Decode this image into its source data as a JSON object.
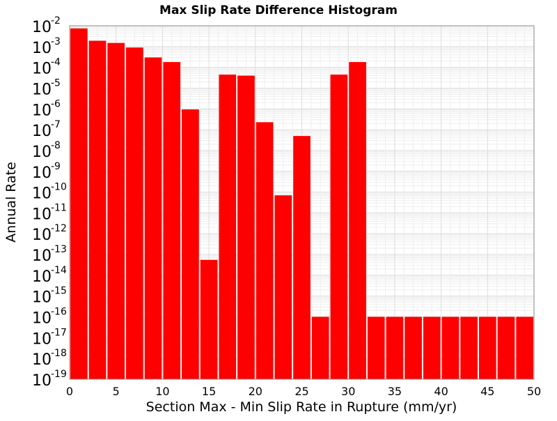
{
  "chart_data": {
    "type": "bar",
    "title": "Max Slip Rate Difference Histogram",
    "xlabel": "Section Max - Min Slip Rate in Rupture (mm/yr)",
    "ylabel": "Annual Rate",
    "xlim": [
      0,
      50
    ],
    "ylim_exponent": [
      -19,
      -2
    ],
    "y_scale": "log",
    "grid": true,
    "bar_color": "#ff0000",
    "bar_width": 2,
    "x_ticks": [
      "0",
      "5",
      "10",
      "15",
      "20",
      "25",
      "30",
      "35",
      "40",
      "45",
      "50"
    ],
    "y_ticks": [
      {
        "base": "10",
        "exp": "-2"
      },
      {
        "base": "10",
        "exp": "-3"
      },
      {
        "base": "10",
        "exp": "-4"
      },
      {
        "base": "10",
        "exp": "-5"
      },
      {
        "base": "10",
        "exp": "-6"
      },
      {
        "base": "10",
        "exp": "-7"
      },
      {
        "base": "10",
        "exp": "-8"
      },
      {
        "base": "10",
        "exp": "-9"
      },
      {
        "base": "10",
        "exp": "-10"
      },
      {
        "base": "10",
        "exp": "-11"
      },
      {
        "base": "10",
        "exp": "-12"
      },
      {
        "base": "10",
        "exp": "-13"
      },
      {
        "base": "10",
        "exp": "-14"
      },
      {
        "base": "10",
        "exp": "-15"
      },
      {
        "base": "10",
        "exp": "-16"
      },
      {
        "base": "10",
        "exp": "-17"
      },
      {
        "base": "10",
        "exp": "-18"
      },
      {
        "base": "10",
        "exp": "-19"
      }
    ],
    "bins": [
      {
        "x": 1,
        "value": 0.0075
      },
      {
        "x": 3,
        "value": 0.0019
      },
      {
        "x": 5,
        "value": 0.0015
      },
      {
        "x": 7,
        "value": 0.0009
      },
      {
        "x": 9,
        "value": 0.0003
      },
      {
        "x": 11,
        "value": 0.00018
      },
      {
        "x": 13,
        "value": 9.5e-07
      },
      {
        "x": 15,
        "value": 5.5e-14
      },
      {
        "x": 17,
        "value": 4.5e-05
      },
      {
        "x": 19,
        "value": 4e-05
      },
      {
        "x": 21,
        "value": 2.3e-07
      },
      {
        "x": 23,
        "value": 7e-11
      },
      {
        "x": 25,
        "value": 5e-08
      },
      {
        "x": 27,
        "value": 1e-16
      },
      {
        "x": 29,
        "value": 4.5e-05
      },
      {
        "x": 31,
        "value": 0.00018
      },
      {
        "x": 33,
        "value": 1e-16
      },
      {
        "x": 35,
        "value": 1e-16
      },
      {
        "x": 37,
        "value": 1e-16
      },
      {
        "x": 39,
        "value": 1e-16
      },
      {
        "x": 41,
        "value": 1e-16
      },
      {
        "x": 43,
        "value": 1e-16
      },
      {
        "x": 45,
        "value": 1e-16
      },
      {
        "x": 47,
        "value": 1e-16
      },
      {
        "x": 49,
        "value": 1e-16
      }
    ]
  }
}
